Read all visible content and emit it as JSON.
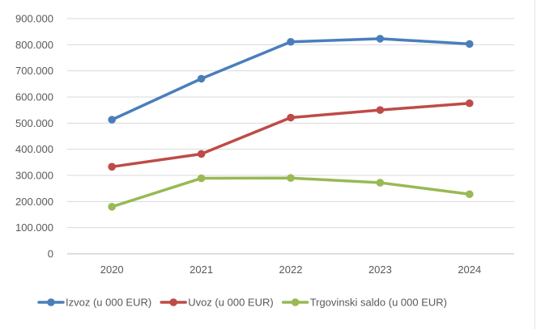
{
  "chart_data": {
    "type": "line",
    "categories": [
      "2020",
      "2021",
      "2022",
      "2023",
      "2024"
    ],
    "ylim": [
      0,
      900000
    ],
    "y_ticks": [
      0,
      100000,
      200000,
      300000,
      400000,
      500000,
      600000,
      700000,
      800000,
      900000
    ],
    "y_tick_labels": [
      "0",
      "100.000",
      "200.000",
      "300.000",
      "400.000",
      "500.000",
      "600.000",
      "700.000",
      "800.000",
      "900.000"
    ],
    "grid": true,
    "legend_position": "bottom",
    "series": [
      {
        "name": "Izvoz (u 000 EUR)",
        "color": "#4a7ebb",
        "values": [
          513000,
          670000,
          811000,
          823000,
          803000
        ]
      },
      {
        "name": "Uvoz (u 000 EUR)",
        "color": "#be4b48",
        "values": [
          333000,
          382000,
          521000,
          550000,
          576000
        ]
      },
      {
        "name": "Trgovinski saldo (u 000 EUR)",
        "color": "#98b954",
        "values": [
          180000,
          289000,
          290000,
          272000,
          228000
        ]
      }
    ]
  }
}
